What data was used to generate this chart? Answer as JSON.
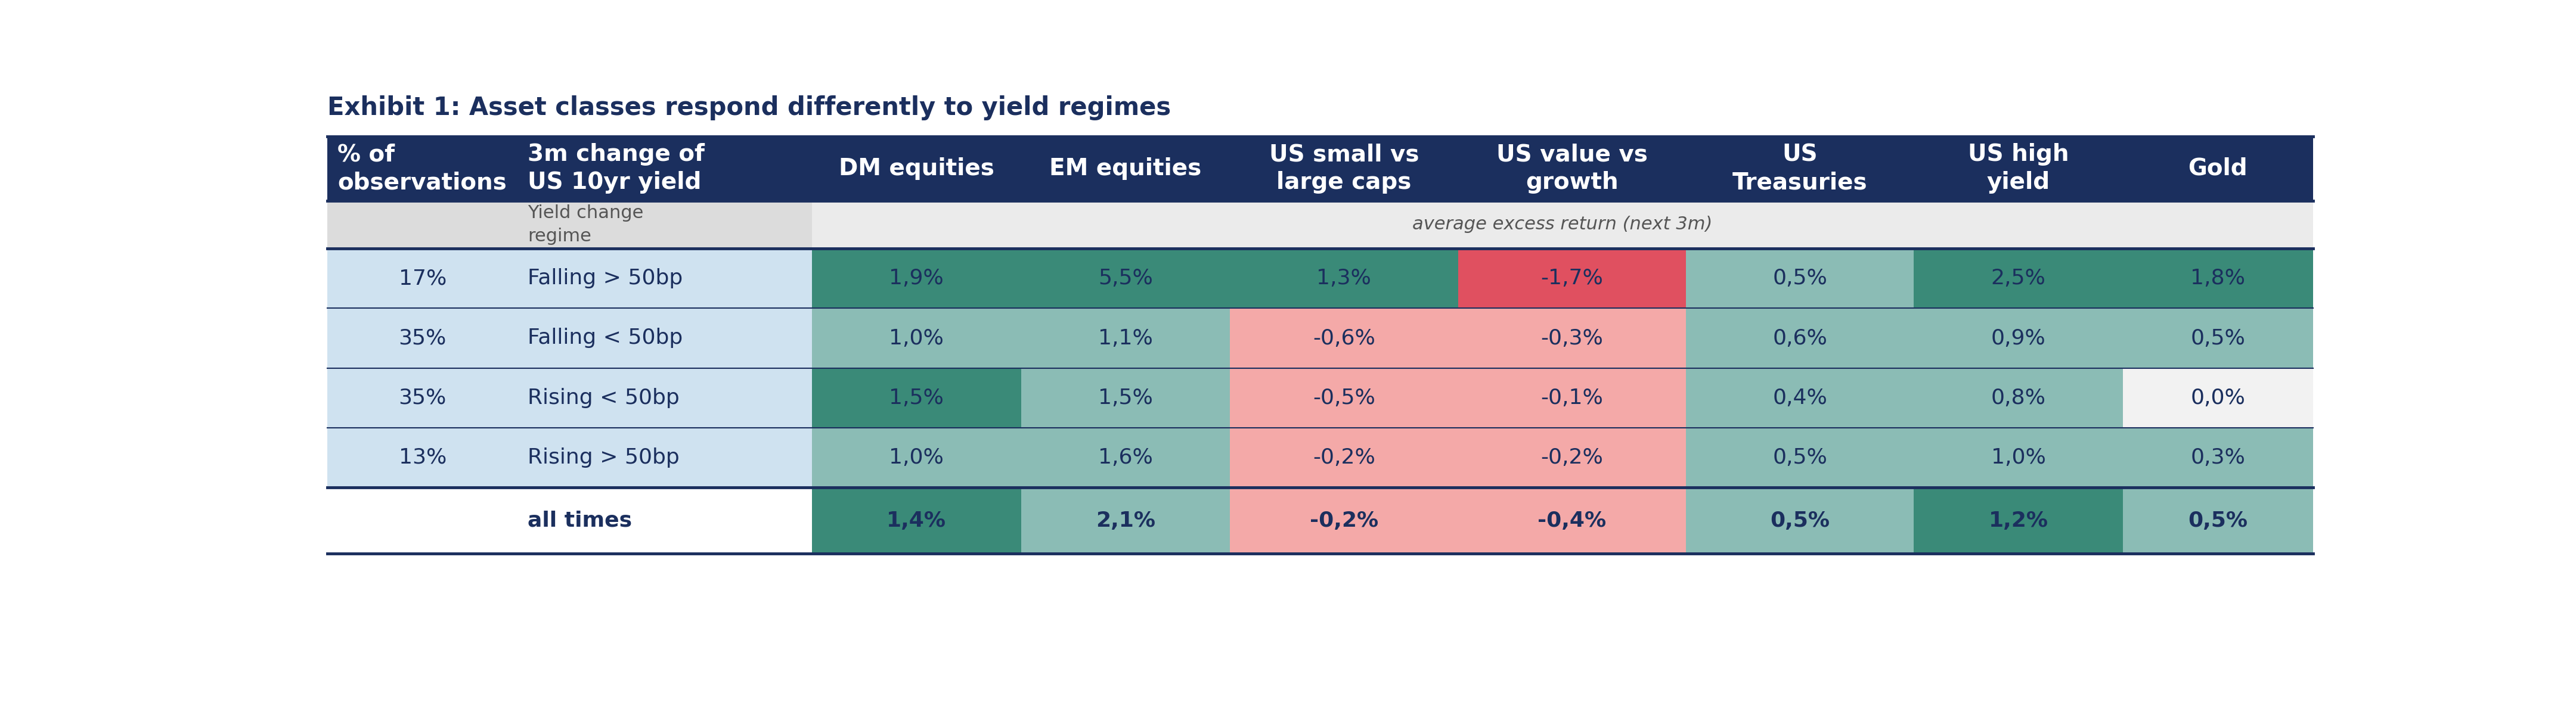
{
  "title": "Exhibit 1: Asset classes respond differently to yield regimes",
  "col_headers": [
    "% of\nobservations",
    "3m change of\nUS 10yr yield",
    "DM equities",
    "EM equities",
    "US small vs\nlarge caps",
    "US value vs\ngrowth",
    "US\nTreasuries",
    "US high\nyield",
    "Gold"
  ],
  "subheader_left": "Yield change\nregime",
  "subheader_right": "average excess return (next 3m)",
  "rows": [
    {
      "pct": "17%",
      "regime": "Falling > 50bp",
      "values": [
        "1,9%",
        "5,5%",
        "1,3%",
        "-1,7%",
        "0,5%",
        "2,5%",
        "1,8%"
      ]
    },
    {
      "pct": "35%",
      "regime": "Falling < 50bp",
      "values": [
        "1,0%",
        "1,1%",
        "-0,6%",
        "-0,3%",
        "0,6%",
        "0,9%",
        "0,5%"
      ]
    },
    {
      "pct": "35%",
      "regime": "Rising < 50bp",
      "values": [
        "1,5%",
        "1,5%",
        "-0,5%",
        "-0,1%",
        "0,4%",
        "0,8%",
        "0,0%"
      ]
    },
    {
      "pct": "13%",
      "regime": "Rising > 50bp",
      "values": [
        "1,0%",
        "1,6%",
        "-0,2%",
        "-0,2%",
        "0,5%",
        "1,0%",
        "0,3%"
      ]
    },
    {
      "pct": "",
      "regime": "all times",
      "values": [
        "1,4%",
        "2,1%",
        "-0,2%",
        "-0,4%",
        "0,5%",
        "1,2%",
        "0,5%"
      ]
    }
  ],
  "cell_colors": [
    [
      "#3a8a78",
      "#3a8a78",
      "#3a8a78",
      "#e05060",
      "#8bbcb5",
      "#3a8a78",
      "#3a8a78"
    ],
    [
      "#8bbcb5",
      "#8bbcb5",
      "#f4a9a8",
      "#f4a9a8",
      "#8bbcb5",
      "#8bbcb5",
      "#8bbcb5"
    ],
    [
      "#3a8a78",
      "#8bbcb5",
      "#f4a9a8",
      "#f4a9a8",
      "#8bbcb5",
      "#8bbcb5",
      "#f2f2f2"
    ],
    [
      "#8bbcb5",
      "#8bbcb5",
      "#f4a9a8",
      "#f4a9a8",
      "#8bbcb5",
      "#8bbcb5",
      "#8bbcb5"
    ],
    [
      "#3a8a78",
      "#8bbcb5",
      "#f4a9a8",
      "#f4a9a8",
      "#8bbcb5",
      "#3a8a78",
      "#8bbcb5"
    ]
  ],
  "header_bg": "#1b2f5e",
  "header_text_color": "#ffffff",
  "subheader_left_bg": "#dcdcdc",
  "subheader_right_bg": "#ebebeb",
  "row_left_bg": [
    "#cfe2f0",
    "#cfe2f0",
    "#cfe2f0",
    "#cfe2f0",
    "#ffffff"
  ],
  "dark_navy": "#1b2f5e",
  "data_text_color": "#1b2f5e",
  "font_size_header": 28,
  "font_size_data": 26,
  "font_size_subheader": 22,
  "col_widths_rel": [
    1.0,
    1.55,
    1.1,
    1.1,
    1.2,
    1.2,
    1.2,
    1.1,
    1.0
  ]
}
